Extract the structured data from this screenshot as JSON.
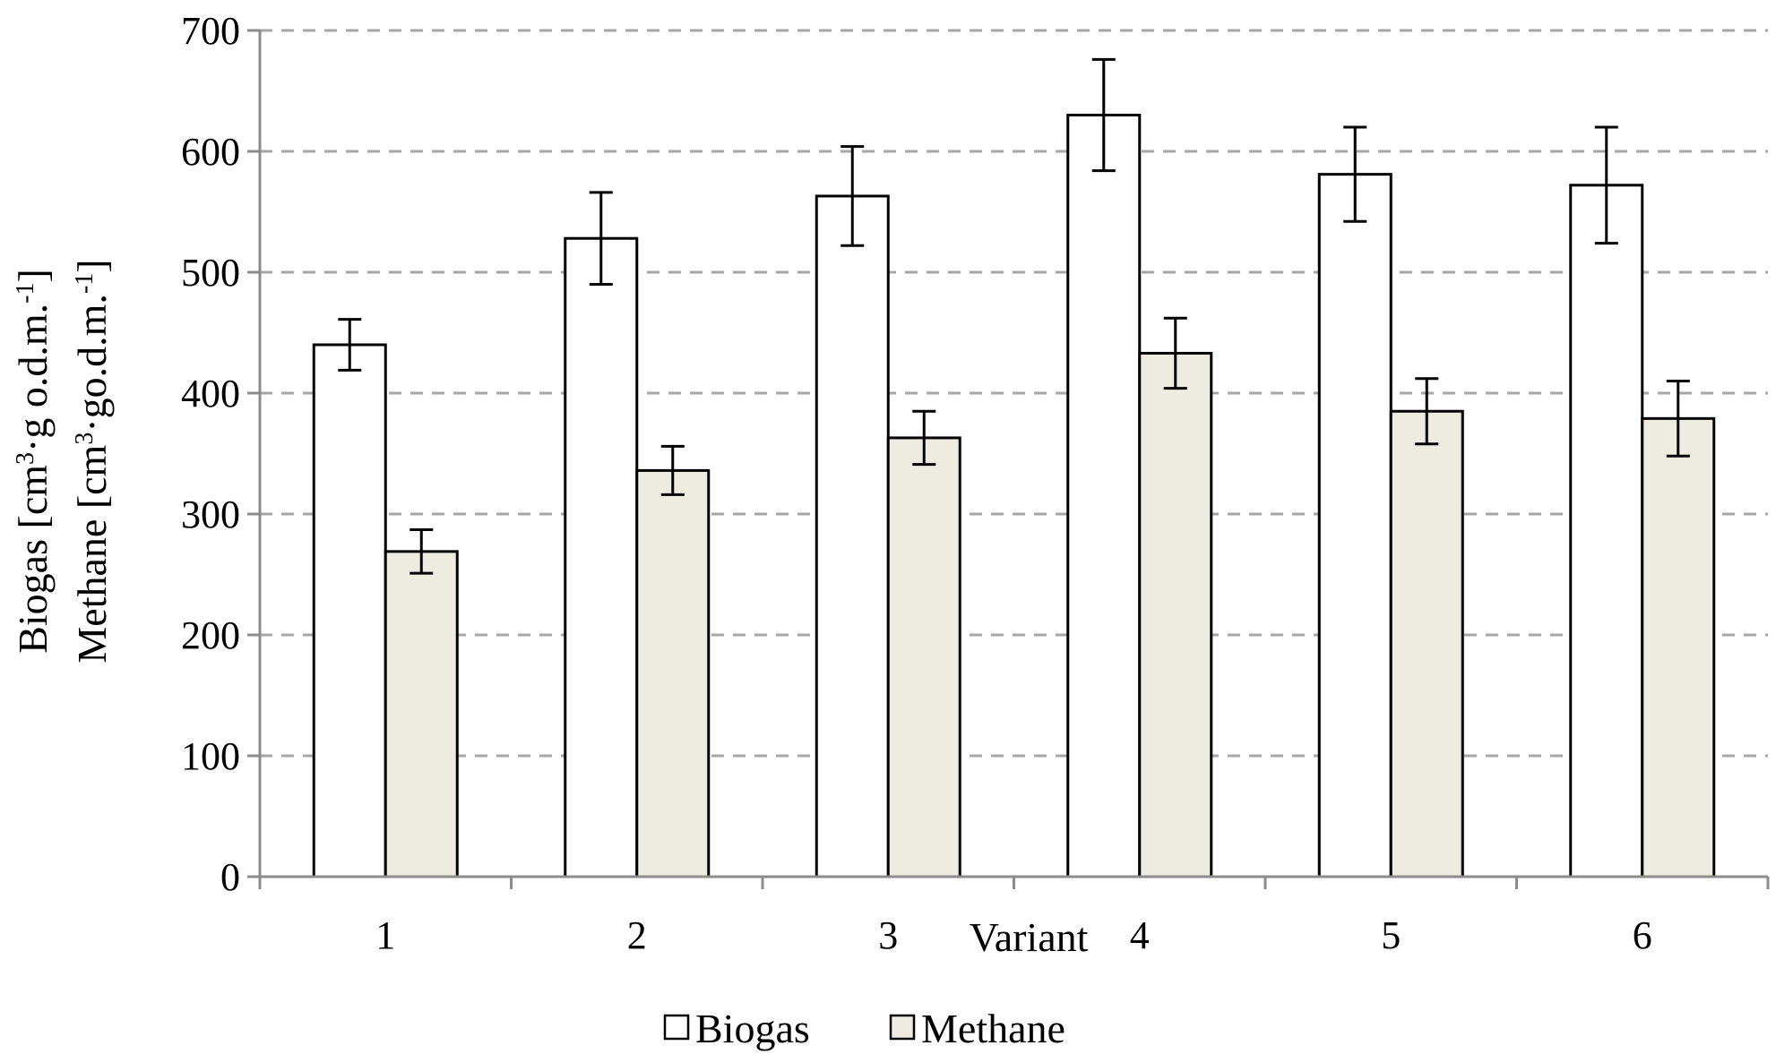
{
  "chart_data": {
    "type": "bar",
    "categories": [
      "1",
      "2",
      "3",
      "4",
      "5",
      "6"
    ],
    "xlabel": "Variant",
    "ylabel_lines": [
      "Biogas [cm",
      "3",
      "·g o.d.m.",
      "-1",
      "]",
      "Methane [cm",
      "3",
      "·go.d.m.",
      "-1",
      "]"
    ],
    "ylim": [
      0,
      700
    ],
    "yticks": [
      0,
      100,
      200,
      300,
      400,
      500,
      600,
      700
    ],
    "grid": true,
    "legend_position": "bottom",
    "series": [
      {
        "name": "Biogas",
        "color": "#ffffff",
        "values": [
          440,
          528,
          563,
          630,
          581,
          572
        ],
        "errors": [
          21,
          38,
          41,
          46,
          39,
          48
        ]
      },
      {
        "name": "Methane",
        "color": "#eeece1",
        "values": [
          269,
          336,
          363,
          433,
          385,
          379
        ],
        "errors": [
          18,
          20,
          22,
          29,
          27,
          31
        ]
      }
    ]
  }
}
